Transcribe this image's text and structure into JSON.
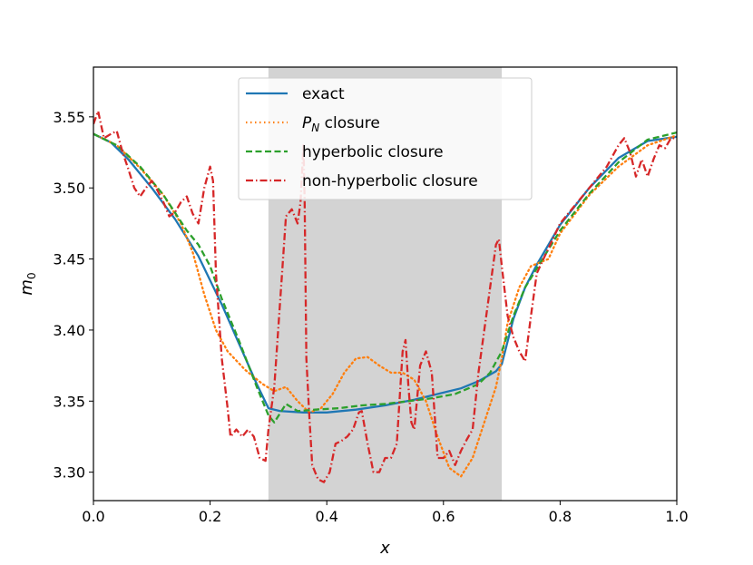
{
  "chart_data": {
    "type": "line",
    "xlabel": "x",
    "ylabel": "m",
    "ylabel_sub": "0",
    "xlim": [
      0.0,
      1.0
    ],
    "ylim": [
      3.28,
      3.585
    ],
    "x_ticks": [
      0.0,
      0.2,
      0.4,
      0.6,
      0.8,
      1.0
    ],
    "x_tick_labels": [
      "0.0",
      "0.2",
      "0.4",
      "0.6",
      "0.8",
      "1.0"
    ],
    "y_ticks": [
      3.3,
      3.35,
      3.4,
      3.45,
      3.5,
      3.55
    ],
    "y_tick_labels": [
      "3.30",
      "3.35",
      "3.40",
      "3.45",
      "3.50",
      "3.55"
    ],
    "grid": false,
    "legend_placement": "upper-center",
    "shaded_region": {
      "x": [
        0.3,
        0.7
      ],
      "color": "#d3d3d3"
    },
    "series": [
      {
        "name": "exact",
        "name_italic": "",
        "name_sub": "",
        "name_rest": "",
        "color": "#1f77b4",
        "dash": "solid",
        "points": [
          [
            0.0,
            3.538
          ],
          [
            0.03,
            3.532
          ],
          [
            0.06,
            3.52
          ],
          [
            0.1,
            3.5
          ],
          [
            0.14,
            3.478
          ],
          [
            0.18,
            3.452
          ],
          [
            0.2,
            3.435
          ],
          [
            0.22,
            3.418
          ],
          [
            0.25,
            3.39
          ],
          [
            0.28,
            3.362
          ],
          [
            0.3,
            3.345
          ],
          [
            0.32,
            3.343
          ],
          [
            0.36,
            3.342
          ],
          [
            0.4,
            3.342
          ],
          [
            0.45,
            3.344
          ],
          [
            0.5,
            3.347
          ],
          [
            0.55,
            3.351
          ],
          [
            0.6,
            3.356
          ],
          [
            0.63,
            3.359
          ],
          [
            0.66,
            3.364
          ],
          [
            0.69,
            3.371
          ],
          [
            0.7,
            3.376
          ],
          [
            0.72,
            3.408
          ],
          [
            0.74,
            3.43
          ],
          [
            0.76,
            3.446
          ],
          [
            0.8,
            3.474
          ],
          [
            0.85,
            3.5
          ],
          [
            0.9,
            3.521
          ],
          [
            0.95,
            3.533
          ],
          [
            1.0,
            3.536
          ]
        ]
      },
      {
        "name": "",
        "name_italic": "P",
        "name_sub": "N",
        "name_rest": " closure",
        "color": "#ff7f0e",
        "dash": "dotted",
        "points": [
          [
            0.0,
            3.538
          ],
          [
            0.04,
            3.53
          ],
          [
            0.08,
            3.514
          ],
          [
            0.12,
            3.495
          ],
          [
            0.15,
            3.475
          ],
          [
            0.17,
            3.455
          ],
          [
            0.19,
            3.425
          ],
          [
            0.21,
            3.4
          ],
          [
            0.23,
            3.385
          ],
          [
            0.26,
            3.372
          ],
          [
            0.29,
            3.362
          ],
          [
            0.31,
            3.357
          ],
          [
            0.33,
            3.36
          ],
          [
            0.35,
            3.35
          ],
          [
            0.37,
            3.342
          ],
          [
            0.39,
            3.345
          ],
          [
            0.41,
            3.355
          ],
          [
            0.43,
            3.37
          ],
          [
            0.45,
            3.38
          ],
          [
            0.47,
            3.381
          ],
          [
            0.49,
            3.375
          ],
          [
            0.51,
            3.37
          ],
          [
            0.53,
            3.37
          ],
          [
            0.55,
            3.365
          ],
          [
            0.57,
            3.35
          ],
          [
            0.59,
            3.325
          ],
          [
            0.61,
            3.303
          ],
          [
            0.63,
            3.297
          ],
          [
            0.65,
            3.31
          ],
          [
            0.67,
            3.335
          ],
          [
            0.69,
            3.36
          ],
          [
            0.7,
            3.38
          ],
          [
            0.71,
            3.405
          ],
          [
            0.73,
            3.43
          ],
          [
            0.75,
            3.445
          ],
          [
            0.78,
            3.45
          ],
          [
            0.8,
            3.468
          ],
          [
            0.85,
            3.495
          ],
          [
            0.9,
            3.515
          ],
          [
            0.95,
            3.53
          ],
          [
            1.0,
            3.537
          ]
        ]
      },
      {
        "name": "hyperbolic closure",
        "name_italic": "",
        "name_sub": "",
        "name_rest": "",
        "color": "#2ca02c",
        "dash": "dashed",
        "points": [
          [
            0.0,
            3.538
          ],
          [
            0.04,
            3.53
          ],
          [
            0.08,
            3.515
          ],
          [
            0.12,
            3.495
          ],
          [
            0.16,
            3.47
          ],
          [
            0.18,
            3.46
          ],
          [
            0.2,
            3.445
          ],
          [
            0.22,
            3.422
          ],
          [
            0.25,
            3.392
          ],
          [
            0.28,
            3.36
          ],
          [
            0.3,
            3.34
          ],
          [
            0.31,
            3.335
          ],
          [
            0.33,
            3.348
          ],
          [
            0.35,
            3.343
          ],
          [
            0.38,
            3.344
          ],
          [
            0.42,
            3.345
          ],
          [
            0.46,
            3.347
          ],
          [
            0.5,
            3.348
          ],
          [
            0.54,
            3.35
          ],
          [
            0.58,
            3.352
          ],
          [
            0.62,
            3.355
          ],
          [
            0.66,
            3.362
          ],
          [
            0.68,
            3.37
          ],
          [
            0.7,
            3.385
          ],
          [
            0.72,
            3.41
          ],
          [
            0.74,
            3.43
          ],
          [
            0.77,
            3.45
          ],
          [
            0.8,
            3.47
          ],
          [
            0.85,
            3.496
          ],
          [
            0.9,
            3.518
          ],
          [
            0.95,
            3.534
          ],
          [
            1.0,
            3.539
          ]
        ]
      },
      {
        "name": "non-hyperbolic closure",
        "name_italic": "",
        "name_sub": "",
        "name_rest": "",
        "color": "#d62728",
        "dash": "dashdot",
        "points": [
          [
            0.0,
            3.545
          ],
          [
            0.008,
            3.554
          ],
          [
            0.018,
            3.535
          ],
          [
            0.03,
            3.538
          ],
          [
            0.04,
            3.54
          ],
          [
            0.05,
            3.525
          ],
          [
            0.06,
            3.513
          ],
          [
            0.07,
            3.5
          ],
          [
            0.08,
            3.494
          ],
          [
            0.09,
            3.5
          ],
          [
            0.1,
            3.505
          ],
          [
            0.11,
            3.498
          ],
          [
            0.12,
            3.49
          ],
          [
            0.13,
            3.48
          ],
          [
            0.14,
            3.483
          ],
          [
            0.15,
            3.49
          ],
          [
            0.16,
            3.494
          ],
          [
            0.17,
            3.482
          ],
          [
            0.18,
            3.475
          ],
          [
            0.19,
            3.5
          ],
          [
            0.2,
            3.515
          ],
          [
            0.205,
            3.505
          ],
          [
            0.21,
            3.44
          ],
          [
            0.22,
            3.38
          ],
          [
            0.23,
            3.345
          ],
          [
            0.235,
            3.325
          ],
          [
            0.245,
            3.33
          ],
          [
            0.255,
            3.325
          ],
          [
            0.265,
            3.33
          ],
          [
            0.275,
            3.325
          ],
          [
            0.285,
            3.31
          ],
          [
            0.295,
            3.308
          ],
          [
            0.3,
            3.33
          ],
          [
            0.31,
            3.36
          ],
          [
            0.32,
            3.42
          ],
          [
            0.33,
            3.48
          ],
          [
            0.34,
            3.485
          ],
          [
            0.35,
            3.475
          ],
          [
            0.355,
            3.49
          ],
          [
            0.36,
            3.53
          ],
          [
            0.362,
            3.492
          ],
          [
            0.365,
            3.38
          ],
          [
            0.37,
            3.34
          ],
          [
            0.375,
            3.305
          ],
          [
            0.385,
            3.295
          ],
          [
            0.395,
            3.293
          ],
          [
            0.405,
            3.3
          ],
          [
            0.415,
            3.32
          ],
          [
            0.425,
            3.322
          ],
          [
            0.435,
            3.325
          ],
          [
            0.445,
            3.33
          ],
          [
            0.455,
            3.342
          ],
          [
            0.46,
            3.343
          ],
          [
            0.47,
            3.32
          ],
          [
            0.48,
            3.3
          ],
          [
            0.49,
            3.3
          ],
          [
            0.5,
            3.31
          ],
          [
            0.51,
            3.31
          ],
          [
            0.52,
            3.32
          ],
          [
            0.53,
            3.385
          ],
          [
            0.535,
            3.393
          ],
          [
            0.54,
            3.36
          ],
          [
            0.545,
            3.335
          ],
          [
            0.55,
            3.33
          ],
          [
            0.56,
            3.375
          ],
          [
            0.57,
            3.385
          ],
          [
            0.58,
            3.37
          ],
          [
            0.59,
            3.31
          ],
          [
            0.6,
            3.31
          ],
          [
            0.61,
            3.315
          ],
          [
            0.62,
            3.305
          ],
          [
            0.63,
            3.315
          ],
          [
            0.64,
            3.323
          ],
          [
            0.65,
            3.33
          ],
          [
            0.66,
            3.37
          ],
          [
            0.67,
            3.4
          ],
          [
            0.68,
            3.43
          ],
          [
            0.69,
            3.46
          ],
          [
            0.695,
            3.464
          ],
          [
            0.7,
            3.445
          ],
          [
            0.71,
            3.41
          ],
          [
            0.72,
            3.395
          ],
          [
            0.73,
            3.385
          ],
          [
            0.74,
            3.378
          ],
          [
            0.75,
            3.41
          ],
          [
            0.76,
            3.44
          ],
          [
            0.8,
            3.475
          ],
          [
            0.85,
            3.5
          ],
          [
            0.88,
            3.515
          ],
          [
            0.9,
            3.53
          ],
          [
            0.91,
            3.535
          ],
          [
            0.92,
            3.525
          ],
          [
            0.93,
            3.508
          ],
          [
            0.94,
            3.52
          ],
          [
            0.95,
            3.508
          ],
          [
            0.96,
            3.52
          ],
          [
            0.97,
            3.53
          ],
          [
            0.98,
            3.528
          ],
          [
            0.99,
            3.535
          ],
          [
            1.0,
            3.535
          ]
        ]
      }
    ]
  }
}
